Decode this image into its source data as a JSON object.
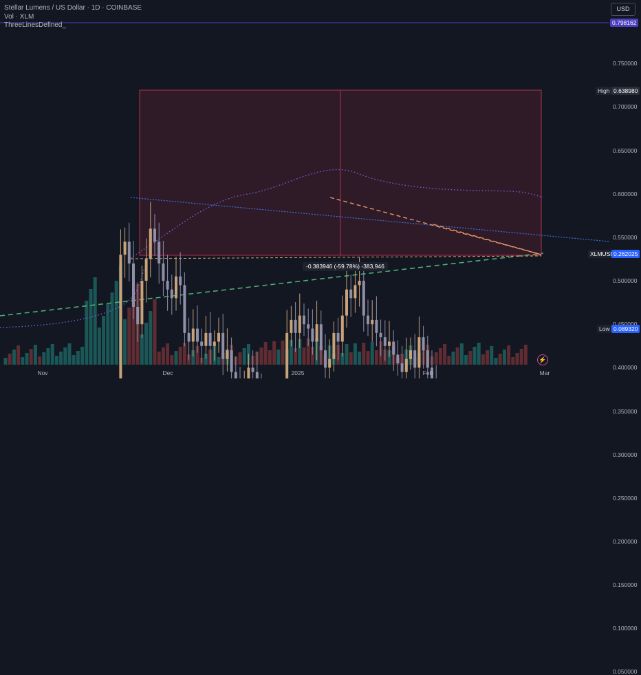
{
  "legend": {
    "title": "Stellar Lumens / US Dollar · 1D · COINBASE",
    "volume": "Vol · XLM",
    "indicator": "ThreeLinesDefined_"
  },
  "currency_button": "USD",
  "price_axis": {
    "ticks": [
      "0.750000",
      "0.700000",
      "0.650000",
      "0.600000",
      "0.550000",
      "0.500000",
      "0.450000",
      "0.400000",
      "0.350000",
      "0.300000",
      "0.250000",
      "0.200000",
      "0.150000",
      "0.100000",
      "0.050000"
    ],
    "ticks_values": [
      0.75,
      0.7,
      0.65,
      0.6,
      0.55,
      0.5,
      0.45,
      0.4,
      0.35,
      0.3,
      0.25,
      0.2,
      0.15,
      0.1,
      0.05
    ]
  },
  "time_axis": {
    "ticks": [
      "Nov",
      "Dec",
      "2025",
      "Feb",
      "Mar"
    ]
  },
  "tags": {
    "line_value": "0.798162",
    "high_label": "High",
    "high_value": "0.638980",
    "symbol": "XLMUSD",
    "last_value": "0.262025",
    "low_label": "Low",
    "low_value": "0.089320"
  },
  "measure_label": "-0.383946 (-59.78%) -383,946",
  "colors": {
    "up": "#26a69a",
    "down": "#ef5350",
    "accent": "#2962ff",
    "range_border": "#b2334a",
    "green_line": "#4caf78",
    "orange_line": "#e8966a"
  }
}
